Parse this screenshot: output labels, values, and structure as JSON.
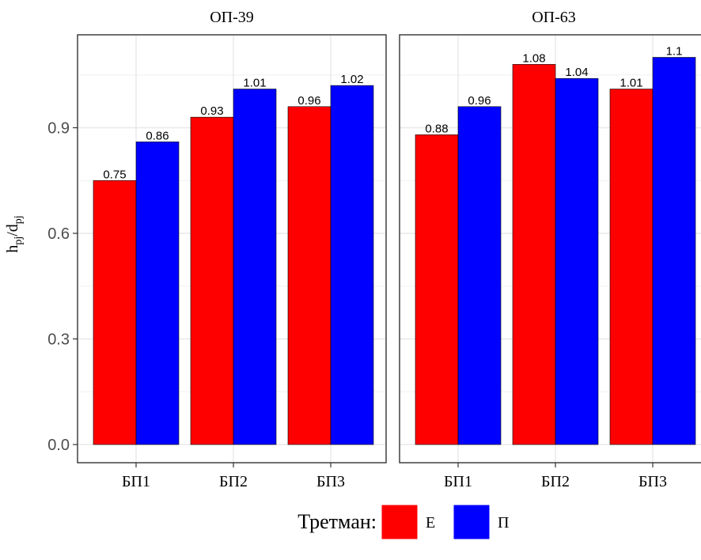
{
  "chart_data": {
    "type": "bar",
    "ylabel": "h",
    "ylabel_sub1": "pj",
    "ylabel_mid": "/d",
    "ylabel_sub2": "pj",
    "ylim": [
      0,
      1.13
    ],
    "yticks": [
      "0.0",
      "0.3",
      "0.6",
      "0.9"
    ],
    "ytick_values": [
      0,
      0.3,
      0.6,
      0.9
    ],
    "grid": true,
    "legend": {
      "title": "Третман:",
      "position": "bottom",
      "entries": [
        {
          "label": "Е",
          "color": "#ff0000"
        },
        {
          "label": "П",
          "color": "#0000ff"
        }
      ]
    },
    "panels": [
      {
        "title": "ОП-39",
        "categories": [
          "БП1",
          "БП2",
          "БП3"
        ],
        "series": [
          {
            "name": "Е",
            "color": "#ff0000",
            "values": [
              0.75,
              0.93,
              0.96
            ],
            "labels": [
              "0.75",
              "0.93",
              "0.96"
            ]
          },
          {
            "name": "П",
            "color": "#0000ff",
            "values": [
              0.86,
              1.01,
              1.02
            ],
            "labels": [
              "0.86",
              "1.01",
              "1.02"
            ]
          }
        ]
      },
      {
        "title": "ОП-63",
        "categories": [
          "БП1",
          "БП2",
          "БП3"
        ],
        "series": [
          {
            "name": "Е",
            "color": "#ff0000",
            "values": [
              0.88,
              1.08,
              1.01
            ],
            "labels": [
              "0.88",
              "1.08",
              "1.01"
            ]
          },
          {
            "name": "П",
            "color": "#0000ff",
            "values": [
              0.96,
              1.04,
              1.1
            ],
            "labels": [
              "0.96",
              "1.04",
              "1.1"
            ]
          }
        ]
      }
    ]
  }
}
